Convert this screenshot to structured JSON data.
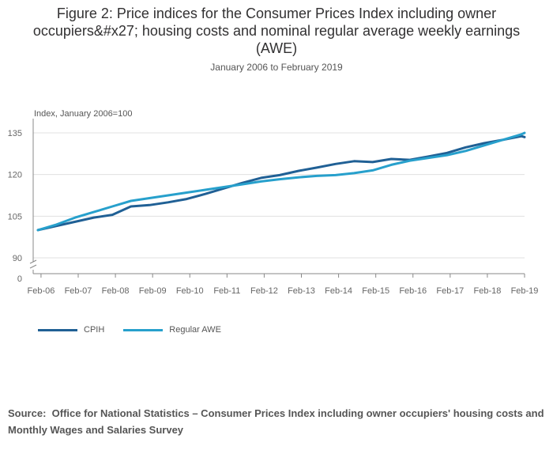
{
  "chart_data": {
    "type": "line",
    "title": "Figure 2: Price indices for the Consumer Prices Index including owner occupiers&#x27; housing costs and nominal regular average weekly earnings (AWE)",
    "subtitle": "January 2006 to February 2019",
    "ylabel": "Index, January 2006=100",
    "xlabel": "",
    "y_ticks": [
      135,
      120,
      105,
      90,
      0
    ],
    "x_ticks": [
      "Feb-06",
      "Feb-07",
      "Feb-08",
      "Feb-09",
      "Feb-10",
      "Feb-11",
      "Feb-12",
      "Feb-13",
      "Feb-14",
      "Feb-15",
      "Feb-16",
      "Feb-17",
      "Feb-18",
      "Feb-19"
    ],
    "axis_break": "between 0 and 90",
    "series": [
      {
        "name": "CPIH",
        "color": "#206095",
        "x": [
          "Jan-06",
          "Jul-06",
          "Jan-07",
          "Jul-07",
          "Jan-08",
          "Jul-08",
          "Jan-09",
          "Jul-09",
          "Jan-10",
          "Jul-10",
          "Jan-11",
          "Jul-11",
          "Jan-12",
          "Jul-12",
          "Jan-13",
          "Jul-13",
          "Jan-14",
          "Jul-14",
          "Jan-15",
          "Jul-15",
          "Jan-16",
          "Jul-16",
          "Jan-17",
          "Jul-17",
          "Jan-18",
          "Jul-18",
          "Jan-19",
          "Feb-19"
        ],
        "values": [
          100.0,
          101.5,
          103.0,
          104.5,
          105.5,
          108.5,
          109.0,
          110.0,
          111.2,
          113.0,
          115.0,
          117.0,
          118.8,
          119.8,
          121.3,
          122.5,
          123.8,
          124.8,
          124.5,
          125.6,
          125.3,
          126.5,
          127.8,
          129.8,
          131.3,
          132.5,
          133.8,
          133.5
        ]
      },
      {
        "name": "Regular AWE",
        "color": "#27a0cc",
        "x": [
          "Jan-06",
          "Jul-06",
          "Jan-07",
          "Jul-07",
          "Jan-08",
          "Jul-08",
          "Jan-09",
          "Jul-09",
          "Jan-10",
          "Jul-10",
          "Jan-11",
          "Jul-11",
          "Jan-12",
          "Jul-12",
          "Jan-13",
          "Jul-13",
          "Jan-14",
          "Jul-14",
          "Jan-15",
          "Jul-15",
          "Jan-16",
          "Jul-16",
          "Jan-17",
          "Jul-17",
          "Jan-18",
          "Jul-18",
          "Jan-19",
          "Feb-19"
        ],
        "values": [
          100.0,
          102.0,
          104.5,
          106.5,
          108.5,
          110.5,
          111.5,
          112.5,
          113.5,
          114.5,
          115.5,
          116.5,
          117.5,
          118.3,
          119.0,
          119.5,
          119.8,
          120.5,
          121.5,
          123.5,
          125.0,
          126.0,
          127.0,
          128.5,
          130.5,
          132.5,
          134.5,
          135.0
        ]
      }
    ]
  },
  "source_label": "Source:",
  "source_text": "Office for National Statistics – Consumer Prices Index including owner occupiers' housing costs and Monthly Wages and Salaries Survey"
}
